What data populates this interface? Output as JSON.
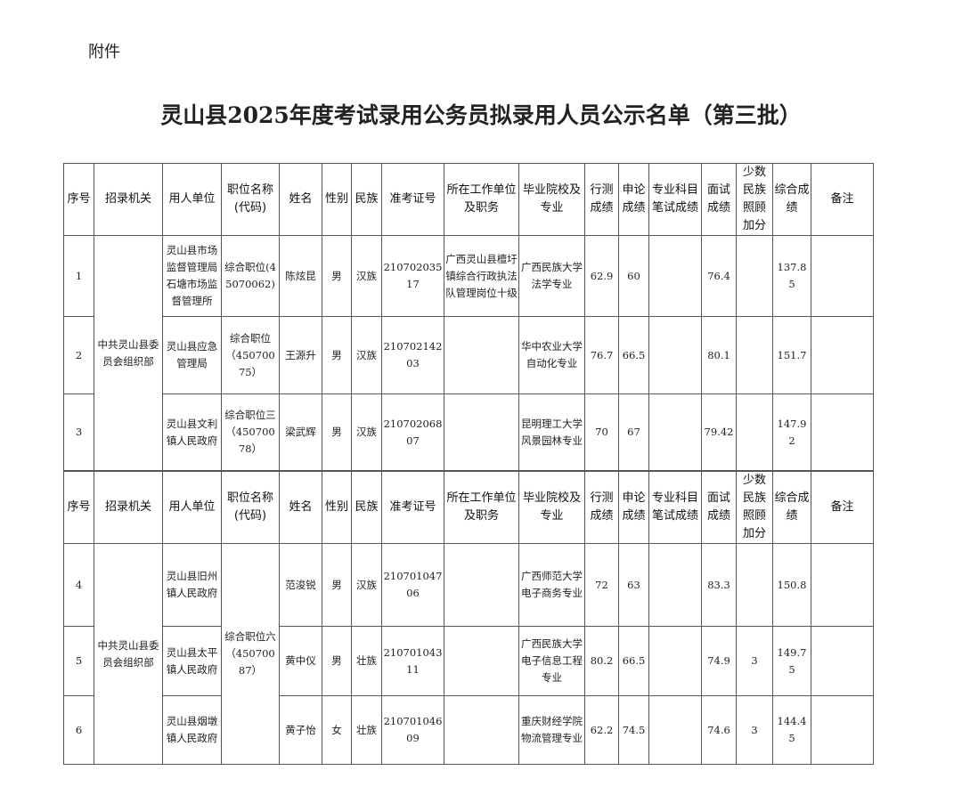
{
  "attachment_label": "附件",
  "title": "灵山县2025年度考试录用公务员拟录用人员公示名单（第三批）",
  "headers": [
    "序号",
    "招录机关",
    "用人单位",
    "职位名称(代码)",
    "姓名",
    "性别",
    "民族",
    "准考证号",
    "所在工作单位及职务",
    "毕业院校及专业",
    "行测成绩",
    "申论成绩",
    "专业科目笔试成绩",
    "面试成绩",
    "少数民族照顾加分",
    "综合成绩",
    "备注"
  ],
  "tables": [
    {
      "agency": "中共灵山县委员会组织部",
      "rows": [
        {
          "no": "1",
          "unit": "灵山县市场监督管理局石塘市场监督管理所",
          "position": "综合职位(45070062)",
          "name": "陈炫昆",
          "gender": "男",
          "ethnicity": "汉族",
          "exam_id": "21070203517",
          "workplace": "广西灵山县檀圩镇综合行政执法队管理岗位十级",
          "school": "广西民族大学法学专业",
          "xingce": "62.9",
          "shenlun": "60",
          "major": "",
          "interview": "76.4",
          "bonus": "",
          "total": "137.85",
          "remark": ""
        },
        {
          "no": "2",
          "unit": "灵山县应急管理局",
          "position": "综合职位（45070075）",
          "name": "王源升",
          "gender": "男",
          "ethnicity": "汉族",
          "exam_id": "21070214203",
          "workplace": "",
          "school": "华中农业大学自动化专业",
          "xingce": "76.7",
          "shenlun": "66.5",
          "major": "",
          "interview": "80.1",
          "bonus": "",
          "total": "151.7",
          "remark": ""
        },
        {
          "no": "3",
          "unit": "灵山县文利镇人民政府",
          "position": "综合职位三（45070078）",
          "name": "梁武辉",
          "gender": "男",
          "ethnicity": "汉族",
          "exam_id": "21070206807",
          "workplace": "",
          "school": "昆明理工大学风景园林专业",
          "xingce": "70",
          "shenlun": "67",
          "major": "",
          "interview": "79.42",
          "bonus": "",
          "total": "147.92",
          "remark": ""
        }
      ]
    },
    {
      "agency": "中共灵山县委员会组织部",
      "shared_position": "综合职位六（45070087）",
      "rows": [
        {
          "no": "4",
          "unit": "灵山县旧州镇人民政府",
          "name": "范浚锐",
          "gender": "男",
          "ethnicity": "汉族",
          "exam_id": "21070104706",
          "workplace": "",
          "school": "广西师范大学电子商务专业",
          "xingce": "72",
          "shenlun": "63",
          "major": "",
          "interview": "83.3",
          "bonus": "",
          "total": "150.8",
          "remark": ""
        },
        {
          "no": "5",
          "unit": "灵山县太平镇人民政府",
          "name": "黄中仪",
          "gender": "男",
          "ethnicity": "壮族",
          "exam_id": "21070104311",
          "workplace": "",
          "school": "广西民族大学电子信息工程专业",
          "xingce": "80.2",
          "shenlun": "66.5",
          "major": "",
          "interview": "74.9",
          "bonus": "3",
          "total": "149.75",
          "remark": ""
        },
        {
          "no": "6",
          "unit": "灵山县烟墩镇人民政府",
          "name": "黄子怡",
          "gender": "女",
          "ethnicity": "壮族",
          "exam_id": "21070104609",
          "workplace": "",
          "school": "重庆财经学院物流管理专业",
          "xingce": "62.2",
          "shenlun": "74.5",
          "major": "",
          "interview": "74.6",
          "bonus": "3",
          "total": "144.45",
          "remark": ""
        }
      ]
    }
  ]
}
